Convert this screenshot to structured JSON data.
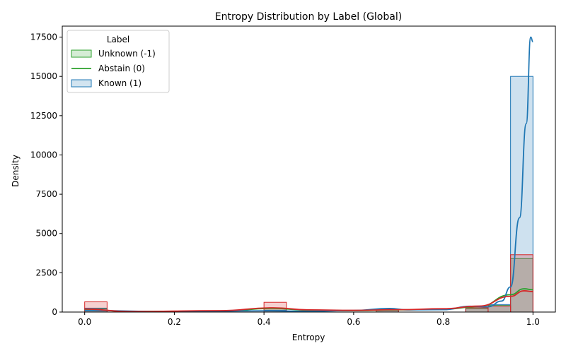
{
  "chart_data": {
    "type": "histogram",
    "title": "Entropy Distribution by Label (Global)",
    "xlabel": "Entropy",
    "ylabel": "Density",
    "xlim": [
      -0.05,
      1.05
    ],
    "ylim": [
      0,
      18200
    ],
    "xticks": [
      0.0,
      0.2,
      0.4,
      0.6,
      0.8,
      1.0
    ],
    "xtick_labels": [
      "0.0",
      "0.2",
      "0.4",
      "0.6",
      "0.8",
      "1.0"
    ],
    "yticks": [
      0,
      2500,
      5000,
      7500,
      10000,
      12500,
      15000,
      17500
    ],
    "ytick_labels": [
      "0",
      "2500",
      "5000",
      "7500",
      "10000",
      "12500",
      "15000",
      "17500"
    ],
    "grid": false,
    "legend": {
      "title": "Label",
      "placement": "top-left",
      "entries": [
        {
          "label": "Unknown (-1)",
          "style": "patch",
          "color": "#2ca02c"
        },
        {
          "label": "Abstain (0)",
          "style": "line",
          "color": "#2ca02c"
        },
        {
          "label": "Known (1)",
          "style": "patch",
          "color": "#1f77b4"
        }
      ]
    },
    "bin_width": 0.05,
    "series": [
      {
        "label": "Unknown (-1)",
        "color": "#2ca02c",
        "fill": "#2ca02c",
        "fill_opacity": 0.2,
        "bins": [
          {
            "x": 0.0,
            "value": 200
          },
          {
            "x": 0.4,
            "value": 250
          },
          {
            "x": 0.65,
            "value": 120
          },
          {
            "x": 0.85,
            "value": 220
          },
          {
            "x": 0.9,
            "value": 420
          },
          {
            "x": 0.95,
            "value": 3400
          }
        ],
        "kde": [
          [
            0.0,
            150
          ],
          [
            0.1,
            40
          ],
          [
            0.3,
            60
          ],
          [
            0.42,
            230
          ],
          [
            0.5,
            120
          ],
          [
            0.6,
            90
          ],
          [
            0.7,
            140
          ],
          [
            0.8,
            180
          ],
          [
            0.88,
            350
          ],
          [
            0.95,
            1100
          ],
          [
            0.98,
            1480
          ],
          [
            1.0,
            1420
          ]
        ]
      },
      {
        "label": "Known (1)",
        "color": "#1f77b4",
        "fill": "#1f77b4",
        "fill_opacity": 0.22,
        "bins": [
          {
            "x": 0.0,
            "value": 250
          },
          {
            "x": 0.4,
            "value": 120
          },
          {
            "x": 0.65,
            "value": 150
          },
          {
            "x": 0.85,
            "value": 330
          },
          {
            "x": 0.9,
            "value": 480
          },
          {
            "x": 0.95,
            "value": 15000
          }
        ],
        "kde": [
          [
            0.0,
            100
          ],
          [
            0.2,
            20
          ],
          [
            0.4,
            80
          ],
          [
            0.5,
            50
          ],
          [
            0.6,
            100
          ],
          [
            0.68,
            230
          ],
          [
            0.72,
            140
          ],
          [
            0.8,
            150
          ],
          [
            0.86,
            370
          ],
          [
            0.9,
            330
          ],
          [
            0.93,
            700
          ],
          [
            0.95,
            1600
          ],
          [
            0.97,
            6000
          ],
          [
            0.985,
            12000
          ],
          [
            0.995,
            17500
          ],
          [
            1.0,
            17200
          ]
        ]
      },
      {
        "label": "",
        "color": "#d62728",
        "fill": "#d62728",
        "fill_opacity": 0.22,
        "bins": [
          {
            "x": 0.0,
            "value": 650
          },
          {
            "x": 0.4,
            "value": 620
          },
          {
            "x": 0.65,
            "value": 180
          },
          {
            "x": 0.85,
            "value": 270
          },
          {
            "x": 0.9,
            "value": 380
          },
          {
            "x": 0.95,
            "value": 3650
          }
        ],
        "kde": [
          [
            0.0,
            190
          ],
          [
            0.1,
            30
          ],
          [
            0.3,
            90
          ],
          [
            0.42,
            270
          ],
          [
            0.5,
            140
          ],
          [
            0.6,
            110
          ],
          [
            0.7,
            150
          ],
          [
            0.8,
            210
          ],
          [
            0.88,
            380
          ],
          [
            0.95,
            1000
          ],
          [
            0.98,
            1350
          ],
          [
            1.0,
            1300
          ]
        ]
      }
    ]
  }
}
